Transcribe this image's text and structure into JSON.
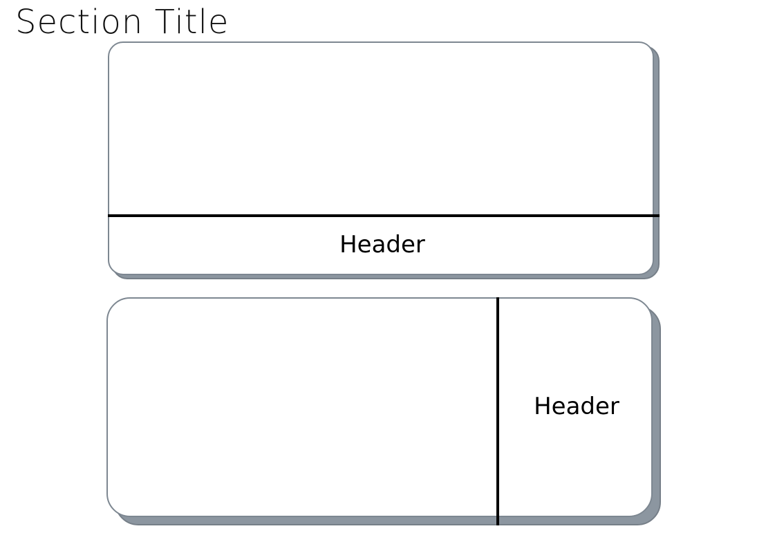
{
  "section_title": "Section Title",
  "cards": [
    {
      "layout": "header-bottom",
      "header_label": "Header"
    },
    {
      "layout": "header-right",
      "header_label": "Header"
    }
  ],
  "colors": {
    "card_border": "#7d8791",
    "card_shadow": "#8c96a0",
    "divider": "#000000",
    "background": "#ffffff"
  }
}
